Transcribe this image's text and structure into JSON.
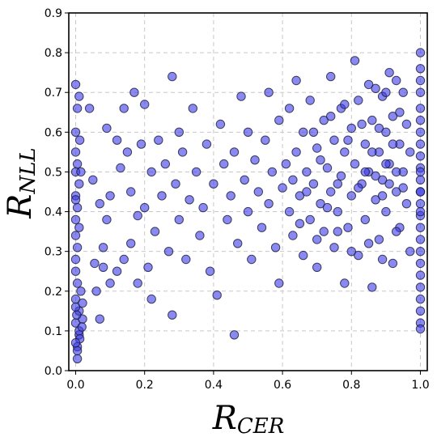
{
  "chart_data": {
    "type": "scatter",
    "xlabel": "R",
    "xlabel_sub": "CER",
    "ylabel": "R",
    "ylabel_sub": "NLL",
    "xlim": [
      -0.02,
      1.02
    ],
    "ylim": [
      0.0,
      0.9
    ],
    "xticks": [
      "0.0",
      "0.2",
      "0.4",
      "0.6",
      "0.8",
      "1.0"
    ],
    "yticks": [
      "0.0",
      "0.1",
      "0.2",
      "0.3",
      "0.4",
      "0.5",
      "0.6",
      "0.7",
      "0.8",
      "0.9"
    ],
    "grid": true,
    "marker_fill": "#3b3be8",
    "marker_edge": "#1a1a3a",
    "marker_opacity": 0.6,
    "series": [
      {
        "points": [
          [
            0.005,
            0.03
          ],
          [
            0.005,
            0.06
          ],
          [
            0.01,
            0.09
          ],
          [
            0.0,
            0.12
          ],
          [
            0.01,
            0.15
          ],
          [
            0.0,
            0.18
          ],
          [
            0.015,
            0.2
          ],
          [
            0.005,
            0.22
          ],
          [
            0.0,
            0.25
          ],
          [
            0.01,
            0.1
          ],
          [
            0.02,
            0.13
          ],
          [
            0.0,
            0.16
          ],
          [
            0.012,
            0.08
          ],
          [
            0.02,
            0.17
          ],
          [
            0.005,
            0.05
          ],
          [
            0.003,
            0.14
          ],
          [
            0.018,
            0.11
          ],
          [
            0.0,
            0.07
          ],
          [
            0.0,
            0.28
          ],
          [
            0.005,
            0.31
          ],
          [
            0.0,
            0.34
          ],
          [
            0.01,
            0.36
          ],
          [
            0.0,
            0.38
          ],
          [
            0.005,
            0.41
          ],
          [
            0.0,
            0.44
          ],
          [
            0.01,
            0.47
          ],
          [
            0.0,
            0.5
          ],
          [
            0.005,
            0.52
          ],
          [
            0.0,
            0.55
          ],
          [
            0.012,
            0.58
          ],
          [
            0.0,
            0.6
          ],
          [
            0.005,
            0.66
          ],
          [
            0.01,
            0.69
          ],
          [
            0.0,
            0.72
          ],
          [
            0.015,
            0.5
          ],
          [
            0.0,
            0.43
          ],
          [
            0.04,
            0.66
          ],
          [
            0.05,
            0.48
          ],
          [
            0.055,
            0.27
          ],
          [
            0.06,
            0.2
          ],
          [
            0.07,
            0.42
          ],
          [
            0.07,
            0.13
          ],
          [
            0.08,
            0.31
          ],
          [
            0.08,
            0.26
          ],
          [
            0.09,
            0.61
          ],
          [
            0.09,
            0.38
          ],
          [
            0.1,
            0.44
          ],
          [
            0.1,
            0.22
          ],
          [
            0.12,
            0.58
          ],
          [
            0.12,
            0.25
          ],
          [
            0.13,
            0.51
          ],
          [
            0.14,
            0.66
          ],
          [
            0.14,
            0.28
          ],
          [
            0.15,
            0.55
          ],
          [
            0.16,
            0.32
          ],
          [
            0.16,
            0.45
          ],
          [
            0.17,
            0.7
          ],
          [
            0.18,
            0.39
          ],
          [
            0.18,
            0.22
          ],
          [
            0.19,
            0.57
          ],
          [
            0.2,
            0.41
          ],
          [
            0.2,
            0.67
          ],
          [
            0.21,
            0.26
          ],
          [
            0.22,
            0.5
          ],
          [
            0.22,
            0.18
          ],
          [
            0.23,
            0.35
          ],
          [
            0.24,
            0.58
          ],
          [
            0.25,
            0.44
          ],
          [
            0.26,
            0.52
          ],
          [
            0.27,
            0.3
          ],
          [
            0.28,
            0.74
          ],
          [
            0.28,
            0.14
          ],
          [
            0.29,
            0.47
          ],
          [
            0.3,
            0.6
          ],
          [
            0.3,
            0.38
          ],
          [
            0.31,
            0.55
          ],
          [
            0.32,
            0.28
          ],
          [
            0.33,
            0.43
          ],
          [
            0.34,
            0.66
          ],
          [
            0.35,
            0.5
          ],
          [
            0.36,
            0.34
          ],
          [
            0.37,
            0.41
          ],
          [
            0.38,
            0.57
          ],
          [
            0.39,
            0.25
          ],
          [
            0.4,
            0.47
          ],
          [
            0.41,
            0.19
          ],
          [
            0.42,
            0.62
          ],
          [
            0.43,
            0.52
          ],
          [
            0.44,
            0.38
          ],
          [
            0.45,
            0.44
          ],
          [
            0.46,
            0.09
          ],
          [
            0.46,
            0.55
          ],
          [
            0.47,
            0.32
          ],
          [
            0.48,
            0.69
          ],
          [
            0.49,
            0.48
          ],
          [
            0.5,
            0.4
          ],
          [
            0.5,
            0.6
          ],
          [
            0.51,
            0.28
          ],
          [
            0.52,
            0.53
          ],
          [
            0.53,
            0.45
          ],
          [
            0.54,
            0.36
          ],
          [
            0.55,
            0.58
          ],
          [
            0.56,
            0.7
          ],
          [
            0.56,
            0.42
          ],
          [
            0.57,
            0.5
          ],
          [
            0.58,
            0.31
          ],
          [
            0.59,
            0.63
          ],
          [
            0.59,
            0.22
          ],
          [
            0.6,
            0.46
          ],
          [
            0.61,
            0.52
          ],
          [
            0.62,
            0.4
          ],
          [
            0.62,
            0.66
          ],
          [
            0.63,
            0.34
          ],
          [
            0.64,
            0.55
          ],
          [
            0.64,
            0.73
          ],
          [
            0.65,
            0.44
          ],
          [
            0.66,
            0.29
          ],
          [
            0.66,
            0.6
          ],
          [
            0.67,
            0.5
          ],
          [
            0.68,
            0.38
          ],
          [
            0.68,
            0.68
          ],
          [
            0.69,
            0.47
          ],
          [
            0.7,
            0.56
          ],
          [
            0.7,
            0.26
          ],
          [
            0.71,
            0.42
          ],
          [
            0.72,
            0.63
          ],
          [
            0.72,
            0.35
          ],
          [
            0.73,
            0.51
          ],
          [
            0.74,
            0.74
          ],
          [
            0.74,
            0.45
          ],
          [
            0.75,
            0.31
          ],
          [
            0.75,
            0.58
          ],
          [
            0.76,
            0.4
          ],
          [
            0.77,
            0.66
          ],
          [
            0.77,
            0.49
          ],
          [
            0.78,
            0.22
          ],
          [
            0.78,
            0.55
          ],
          [
            0.79,
            0.36
          ],
          [
            0.8,
            0.61
          ],
          [
            0.8,
            0.44
          ],
          [
            0.81,
            0.78
          ],
          [
            0.81,
            0.52
          ],
          [
            0.82,
            0.29
          ],
          [
            0.82,
            0.68
          ],
          [
            0.83,
            0.47
          ],
          [
            0.84,
            0.57
          ],
          [
            0.84,
            0.38
          ],
          [
            0.85,
            0.72
          ],
          [
            0.85,
            0.5
          ],
          [
            0.86,
            0.21
          ],
          [
            0.86,
            0.63
          ],
          [
            0.87,
            0.43
          ],
          [
            0.88,
            0.55
          ],
          [
            0.88,
            0.33
          ],
          [
            0.89,
            0.69
          ],
          [
            0.89,
            0.48
          ],
          [
            0.9,
            0.6
          ],
          [
            0.9,
            0.4
          ],
          [
            0.91,
            0.75
          ],
          [
            0.91,
            0.52
          ],
          [
            0.92,
            0.27
          ],
          [
            0.92,
            0.64
          ],
          [
            0.93,
            0.45
          ],
          [
            0.94,
            0.57
          ],
          [
            0.94,
            0.36
          ],
          [
            0.95,
            0.7
          ],
          [
            0.95,
            0.5
          ],
          [
            0.96,
            0.42
          ],
          [
            0.96,
            0.62
          ],
          [
            0.97,
            0.3
          ],
          [
            0.97,
            0.55
          ],
          [
            0.63,
            0.48
          ],
          [
            0.67,
            0.45
          ],
          [
            0.71,
            0.53
          ],
          [
            0.73,
            0.41
          ],
          [
            0.76,
            0.47
          ],
          [
            0.79,
            0.58
          ],
          [
            0.82,
            0.46
          ],
          [
            0.84,
            0.5
          ],
          [
            0.86,
            0.55
          ],
          [
            0.87,
            0.49
          ],
          [
            0.88,
            0.61
          ],
          [
            0.89,
            0.44
          ],
          [
            0.9,
            0.52
          ],
          [
            0.91,
            0.47
          ],
          [
            0.92,
            0.57
          ],
          [
            0.93,
            0.5
          ],
          [
            0.94,
            0.65
          ],
          [
            0.95,
            0.46
          ],
          [
            0.69,
            0.6
          ],
          [
            0.74,
            0.64
          ],
          [
            0.78,
            0.67
          ],
          [
            0.83,
            0.62
          ],
          [
            0.87,
            0.71
          ],
          [
            0.9,
            0.7
          ],
          [
            0.93,
            0.73
          ],
          [
            0.65,
            0.37
          ],
          [
            0.7,
            0.33
          ],
          [
            0.76,
            0.35
          ],
          [
            0.8,
            0.3
          ],
          [
            0.85,
            0.32
          ],
          [
            0.89,
            0.28
          ],
          [
            0.93,
            0.35
          ],
          [
            1.0,
            0.8
          ],
          [
            1.0,
            0.76
          ],
          [
            1.0,
            0.73
          ],
          [
            1.0,
            0.7
          ],
          [
            1.0,
            0.66
          ],
          [
            1.0,
            0.63
          ],
          [
            1.0,
            0.6
          ],
          [
            1.0,
            0.57
          ],
          [
            1.0,
            0.54
          ],
          [
            1.0,
            0.51
          ],
          [
            1.0,
            0.48
          ],
          [
            1.0,
            0.45
          ],
          [
            1.0,
            0.42
          ],
          [
            1.0,
            0.39
          ],
          [
            1.0,
            0.36
          ],
          [
            1.0,
            0.33
          ],
          [
            1.0,
            0.3
          ],
          [
            1.0,
            0.27
          ],
          [
            1.0,
            0.24
          ],
          [
            1.0,
            0.21
          ],
          [
            1.0,
            0.18
          ],
          [
            1.0,
            0.15
          ],
          [
            1.0,
            0.12
          ],
          [
            1.0,
            0.105
          ],
          [
            1.0,
            0.5
          ],
          [
            1.0,
            0.45
          ],
          [
            1.0,
            0.4
          ]
        ]
      }
    ]
  }
}
